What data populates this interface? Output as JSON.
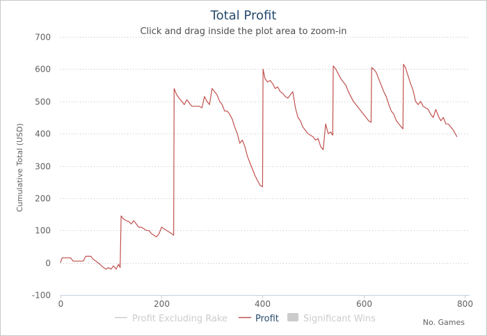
{
  "chart_data": {
    "type": "line",
    "title": "Total Profit",
    "subtitle": "Click and drag inside the plot area to zoom-in",
    "xlabel": "No. Games",
    "ylabel": "Cumulative Total (USD)",
    "xlim": [
      0,
      810
    ],
    "ylim": [
      -100,
      700
    ],
    "x_ticks": [
      0,
      200,
      400,
      600,
      800
    ],
    "y_ticks": [
      -100,
      0,
      100,
      200,
      300,
      400,
      500,
      600,
      700
    ],
    "grid": true,
    "legend": [
      {
        "name": "Profit Excluding Rake",
        "color": "#cccccc",
        "symbol": "line"
      },
      {
        "name": "Profit",
        "color": "#c0504d",
        "symbol": "line"
      },
      {
        "name": "Significant Wins",
        "color": "#cccccc",
        "symbol": "box"
      }
    ],
    "series": [
      {
        "name": "Profit",
        "color": "#c0504d",
        "points": [
          [
            0,
            0
          ],
          [
            3,
            15
          ],
          [
            8,
            15
          ],
          [
            20,
            15
          ],
          [
            25,
            5
          ],
          [
            35,
            5
          ],
          [
            45,
            5
          ],
          [
            50,
            20
          ],
          [
            60,
            20
          ],
          [
            65,
            10
          ],
          [
            70,
            5
          ],
          [
            78,
            -5
          ],
          [
            85,
            -15
          ],
          [
            90,
            -20
          ],
          [
            95,
            -15
          ],
          [
            100,
            -20
          ],
          [
            105,
            -10
          ],
          [
            110,
            -20
          ],
          [
            115,
            -5
          ],
          [
            118,
            -15
          ],
          [
            120,
            145
          ],
          [
            125,
            135
          ],
          [
            130,
            130
          ],
          [
            135,
            128
          ],
          [
            140,
            120
          ],
          [
            145,
            130
          ],
          [
            150,
            120
          ],
          [
            155,
            110
          ],
          [
            160,
            110
          ],
          [
            165,
            105
          ],
          [
            170,
            100
          ],
          [
            175,
            100
          ],
          [
            180,
            90
          ],
          [
            185,
            85
          ],
          [
            190,
            80
          ],
          [
            195,
            90
          ],
          [
            200,
            110
          ],
          [
            205,
            105
          ],
          [
            210,
            100
          ],
          [
            215,
            95
          ],
          [
            220,
            90
          ],
          [
            224,
            85
          ],
          [
            225,
            540
          ],
          [
            230,
            520
          ],
          [
            235,
            510
          ],
          [
            240,
            500
          ],
          [
            245,
            490
          ],
          [
            250,
            505
          ],
          [
            255,
            495
          ],
          [
            260,
            485
          ],
          [
            265,
            485
          ],
          [
            270,
            485
          ],
          [
            275,
            485
          ],
          [
            280,
            480
          ],
          [
            285,
            515
          ],
          [
            290,
            500
          ],
          [
            295,
            490
          ],
          [
            300,
            540
          ],
          [
            305,
            530
          ],
          [
            310,
            520
          ],
          [
            315,
            500
          ],
          [
            320,
            490
          ],
          [
            325,
            470
          ],
          [
            330,
            470
          ],
          [
            335,
            460
          ],
          [
            340,
            445
          ],
          [
            345,
            420
          ],
          [
            350,
            400
          ],
          [
            355,
            370
          ],
          [
            360,
            380
          ],
          [
            365,
            360
          ],
          [
            370,
            330
          ],
          [
            375,
            310
          ],
          [
            380,
            290
          ],
          [
            385,
            270
          ],
          [
            390,
            255
          ],
          [
            395,
            240
          ],
          [
            400,
            235
          ],
          [
            401,
            600
          ],
          [
            405,
            570
          ],
          [
            410,
            560
          ],
          [
            415,
            565
          ],
          [
            420,
            555
          ],
          [
            425,
            540
          ],
          [
            430,
            545
          ],
          [
            435,
            530
          ],
          [
            440,
            525
          ],
          [
            445,
            515
          ],
          [
            450,
            510
          ],
          [
            455,
            520
          ],
          [
            460,
            530
          ],
          [
            465,
            480
          ],
          [
            470,
            450
          ],
          [
            475,
            440
          ],
          [
            480,
            420
          ],
          [
            485,
            410
          ],
          [
            490,
            400
          ],
          [
            495,
            395
          ],
          [
            500,
            390
          ],
          [
            505,
            380
          ],
          [
            510,
            385
          ],
          [
            515,
            360
          ],
          [
            520,
            350
          ],
          [
            525,
            430
          ],
          [
            530,
            400
          ],
          [
            535,
            405
          ],
          [
            539,
            395
          ],
          [
            540,
            610
          ],
          [
            545,
            600
          ],
          [
            550,
            585
          ],
          [
            555,
            570
          ],
          [
            560,
            560
          ],
          [
            565,
            550
          ],
          [
            570,
            530
          ],
          [
            575,
            515
          ],
          [
            580,
            500
          ],
          [
            585,
            490
          ],
          [
            590,
            480
          ],
          [
            595,
            470
          ],
          [
            600,
            460
          ],
          [
            605,
            450
          ],
          [
            610,
            440
          ],
          [
            615,
            435
          ],
          [
            616,
            605
          ],
          [
            620,
            600
          ],
          [
            625,
            590
          ],
          [
            630,
            570
          ],
          [
            635,
            550
          ],
          [
            640,
            530
          ],
          [
            645,
            515
          ],
          [
            650,
            490
          ],
          [
            655,
            470
          ],
          [
            660,
            460
          ],
          [
            665,
            440
          ],
          [
            670,
            430
          ],
          [
            675,
            420
          ],
          [
            678,
            415
          ],
          [
            679,
            615
          ],
          [
            683,
            605
          ],
          [
            688,
            580
          ],
          [
            693,
            555
          ],
          [
            698,
            535
          ],
          [
            703,
            500
          ],
          [
            708,
            490
          ],
          [
            713,
            500
          ],
          [
            718,
            485
          ],
          [
            723,
            480
          ],
          [
            728,
            475
          ],
          [
            733,
            460
          ],
          [
            738,
            450
          ],
          [
            743,
            475
          ],
          [
            748,
            455
          ],
          [
            753,
            440
          ],
          [
            758,
            450
          ],
          [
            763,
            430
          ],
          [
            768,
            430
          ],
          [
            773,
            420
          ],
          [
            778,
            410
          ],
          [
            785,
            390
          ]
        ]
      }
    ]
  }
}
